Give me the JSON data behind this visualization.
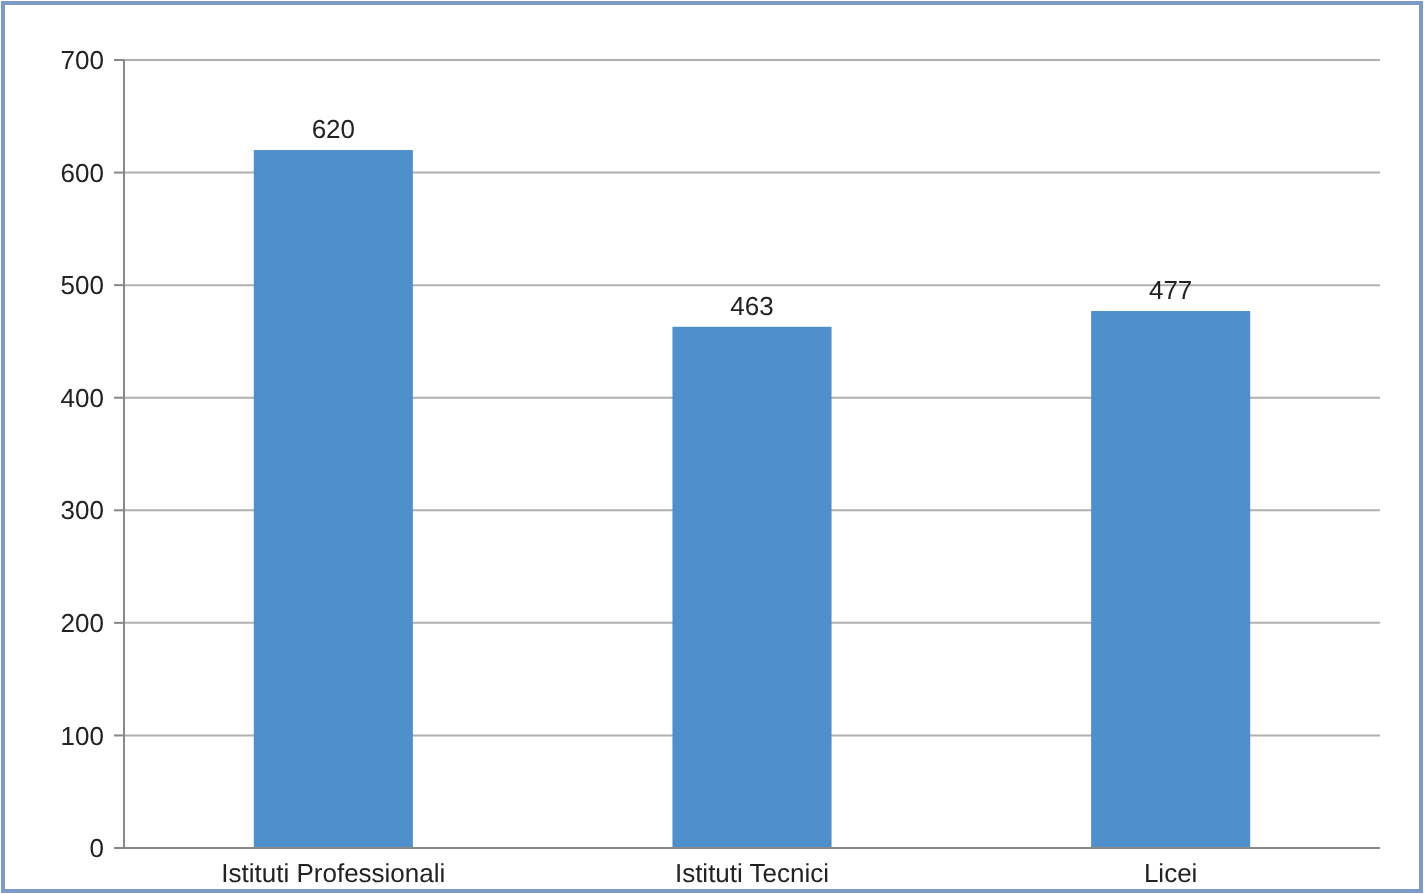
{
  "chart_data": {
    "type": "bar",
    "categories": [
      "Istituti Professionali",
      "Istituti Tecnici",
      "Licei"
    ],
    "values": [
      620,
      463,
      477
    ],
    "color": "#4f8fcc",
    "ylim": [
      0,
      700
    ],
    "yticks": [
      0,
      100,
      200,
      300,
      400,
      500,
      600,
      700
    ],
    "grid": "y",
    "data_labels": true
  }
}
